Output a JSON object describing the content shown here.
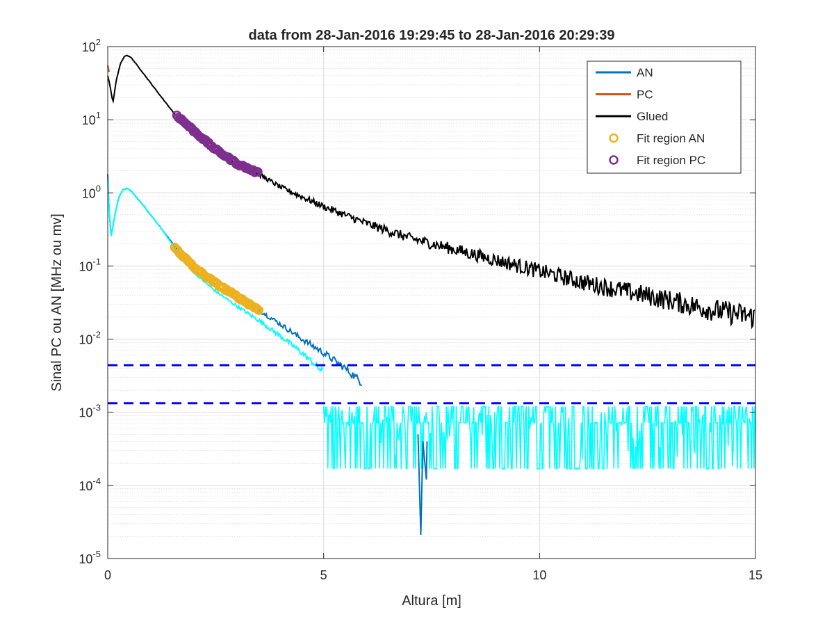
{
  "chart_data": {
    "type": "line",
    "title": "data from 28-Jan-2016 19:29:45 to 28-Jan-2016 20:29:39",
    "xlabel": "Altura [m]",
    "ylabel": "Sinal PC ou AN [MHz ou mv]",
    "xlim": [
      0,
      15
    ],
    "ylim": [
      1e-05,
      100
    ],
    "yscale": "log",
    "grid": true,
    "minor_grid": true,
    "legend_position": "top-right",
    "xticks": [
      0,
      5,
      10,
      15
    ],
    "xtick_labels": [
      "0",
      "5",
      "10",
      "15"
    ],
    "yticks": [
      1e-05,
      0.0001,
      0.001,
      0.01,
      0.1,
      1,
      10,
      100
    ],
    "ytick_labels": [
      {
        "base": "10",
        "exp": "-5"
      },
      {
        "base": "10",
        "exp": "-4"
      },
      {
        "base": "10",
        "exp": "-3"
      },
      {
        "base": "10",
        "exp": "-2"
      },
      {
        "base": "10",
        "exp": "-1"
      },
      {
        "base": "10",
        "exp": "0"
      },
      {
        "base": "10",
        "exp": "1"
      },
      {
        "base": "10",
        "exp": "2"
      }
    ],
    "legend": [
      {
        "label": "AN",
        "kind": "line",
        "color": "#0072BD"
      },
      {
        "label": "PC",
        "kind": "line",
        "color": "#D95319"
      },
      {
        "label": "Glued",
        "kind": "line",
        "color": "#000000"
      },
      {
        "label": "Fit region AN",
        "kind": "marker",
        "color": "#EDB120"
      },
      {
        "label": "Fit region PC",
        "kind": "marker",
        "color": "#7E2F8E"
      }
    ],
    "series": [
      {
        "name": "Glued",
        "color": "#000000",
        "noise": "increasing",
        "x": [
          0.0,
          0.05,
          0.12,
          0.2,
          0.3,
          0.4,
          0.45,
          0.55,
          0.8,
          1.2,
          1.6,
          2.0,
          2.5,
          3.0,
          3.5,
          4.0,
          5.0,
          6.0,
          7.0,
          8.0,
          9.0,
          10.0,
          11.0,
          12.0,
          13.0,
          14.0,
          15.0
        ],
        "y": [
          40,
          30,
          17,
          35,
          60,
          75,
          76,
          70,
          45,
          22,
          11,
          6.8,
          3.7,
          2.4,
          1.8,
          1.2,
          0.65,
          0.38,
          0.24,
          0.17,
          0.12,
          0.085,
          0.06,
          0.045,
          0.034,
          0.025,
          0.02
        ]
      },
      {
        "name": "PC",
        "color": "#D95319",
        "x": [
          0.0,
          0.03
        ],
        "y": [
          55,
          45
        ]
      },
      {
        "name": "AN",
        "color": "#0072BD",
        "noise": "increasing",
        "x": [
          0.0,
          0.03,
          0.08,
          0.15,
          0.25,
          0.35,
          0.45,
          0.55,
          0.8,
          1.2,
          1.6,
          2.0,
          2.5,
          3.0,
          3.5,
          4.0,
          4.5,
          5.0,
          5.5,
          5.9
        ],
        "y": [
          1.8,
          0.6,
          0.25,
          0.45,
          0.85,
          1.1,
          1.15,
          1.05,
          0.7,
          0.35,
          0.17,
          0.09,
          0.055,
          0.035,
          0.025,
          0.016,
          0.01,
          0.0065,
          0.004,
          0.0025
        ]
      },
      {
        "name": "",
        "color": "#00FFFF",
        "noise": "increasing",
        "x": [
          0.0,
          0.03,
          0.08,
          0.15,
          0.25,
          0.35,
          0.45,
          0.55,
          0.8,
          1.2,
          1.6,
          2.0,
          2.5,
          3.0,
          3.5,
          4.0,
          4.5,
          5.0
        ],
        "y": [
          1.5,
          0.6,
          0.25,
          0.45,
          0.85,
          1.1,
          1.15,
          1.05,
          0.7,
          0.35,
          0.16,
          0.08,
          0.045,
          0.028,
          0.018,
          0.011,
          0.0065,
          0.0035
        ]
      },
      {
        "name": "",
        "color": "#00FFFF",
        "kind": "noise_band",
        "x_range": [
          5.0,
          15.0
        ],
        "y_range": [
          0.00017,
          0.0012
        ]
      },
      {
        "name": "",
        "color": "#0072BD",
        "kind": "spike",
        "x": 7.25,
        "y": 2.1e-05
      },
      {
        "name": "Fit region AN",
        "color": "#EDB120",
        "kind": "marker_run",
        "x": [
          1.55,
          2.0,
          2.5,
          3.0,
          3.5
        ],
        "y": [
          0.18,
          0.095,
          0.058,
          0.038,
          0.025
        ]
      },
      {
        "name": "Fit region PC",
        "color": "#7E2F8E",
        "kind": "marker_run",
        "x": [
          1.6,
          2.0,
          2.5,
          3.0,
          3.5
        ],
        "y": [
          11.5,
          7.0,
          3.9,
          2.5,
          1.85
        ]
      },
      {
        "name": "",
        "color": "#0000FF",
        "kind": "hline_dashed",
        "y": 0.0044
      },
      {
        "name": "",
        "color": "#0000FF",
        "kind": "hline_dashed",
        "y": 0.00133
      }
    ]
  }
}
